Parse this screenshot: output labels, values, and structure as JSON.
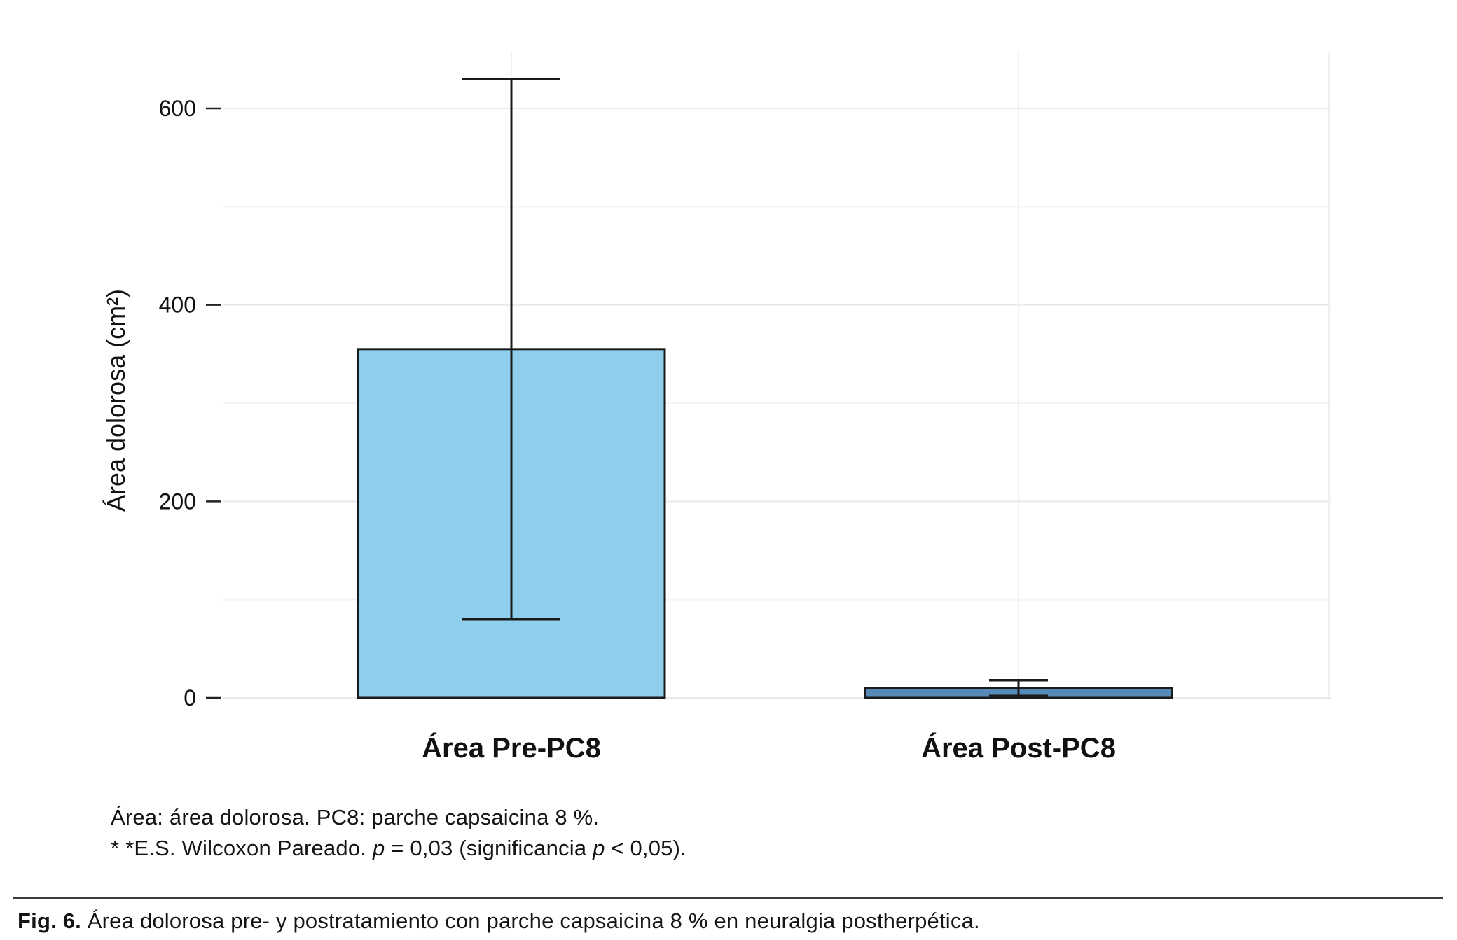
{
  "chart_data": {
    "type": "bar",
    "title": "",
    "categories": [
      "Área Pre-PC8",
      "Área Post-PC8"
    ],
    "values": [
      355,
      10
    ],
    "error_bars": [
      {
        "low": 80,
        "high": 630
      },
      {
        "low": 2,
        "high": 18
      }
    ],
    "bar_colors": [
      "#8DCFEC",
      "#5589B8"
    ],
    "bar_stroke": "#1a1a1a",
    "ylabel": "Área dolorosa (cm²)",
    "yticks": [
      0,
      200,
      400,
      600
    ],
    "ylim": [
      0,
      660
    ],
    "grid": true,
    "legend": false
  },
  "notes": {
    "line1": "Área: área dolorosa. PC8: parche capsaicina 8 %.",
    "line2": [
      {
        "t": "* *E.S. Wilcoxon Pareado. "
      },
      {
        "t": "p",
        "i": true
      },
      {
        "t": " = 0,03 (significancia "
      },
      {
        "t": "p",
        "i": true
      },
      {
        "t": " < 0,05)."
      }
    ]
  },
  "caption": {
    "label": "Fig. 6.",
    "text": " Área dolorosa pre- y postratamiento con parche capsaicina 8 % en neuralgia postherpética."
  }
}
